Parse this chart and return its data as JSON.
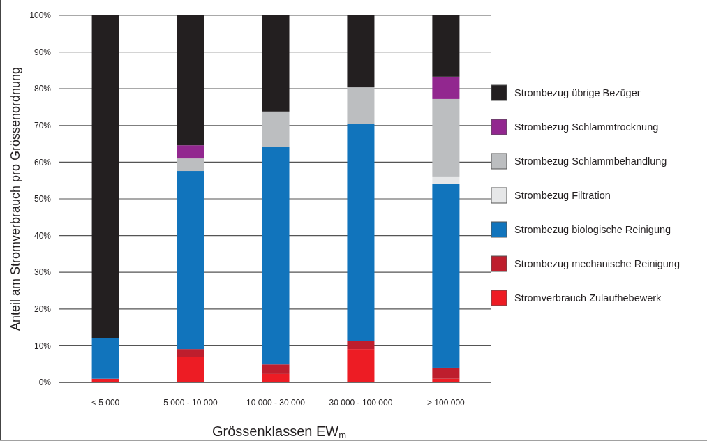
{
  "chart_data": {
    "type": "bar",
    "stacked": true,
    "xlabel": "Grössenklassen EW$_{m}$",
    "ylabel": "Anteil am Stromverbrauch pro Grössenordnung",
    "categories": [
      "< 5 000",
      "5 000 - 10 000",
      "10 000 - 30 000",
      "30 000 - 100 000",
      "> 100 000"
    ],
    "ylim": [
      0,
      100
    ],
    "yticks": [
      {
        "value": 0,
        "label": "0%"
      },
      {
        "value": 10,
        "label": "10%"
      },
      {
        "value": 20,
        "label": "20%"
      },
      {
        "value": 30,
        "label": "30%"
      },
      {
        "value": 40,
        "label": "40%"
      },
      {
        "value": 50,
        "label": "50%"
      },
      {
        "value": 60,
        "label": "60%"
      },
      {
        "value": 70,
        "label": "70%"
      },
      {
        "value": 80,
        "label": "80%"
      },
      {
        "value": 90,
        "label": "90%"
      },
      {
        "value": 100,
        "label": "100%"
      }
    ],
    "grid": "y",
    "legend": "right",
    "series": [
      {
        "name": "Stromverbrauch Zulaufhebewerk",
        "color": "#ed1c24",
        "values": [
          1,
          7,
          2.3,
          9.1,
          1
        ]
      },
      {
        "name": "Strombezug mechanische Reinigung",
        "color": "#be1e2d",
        "values": [
          0,
          2.1,
          2.6,
          2.3,
          3
        ]
      },
      {
        "name": "Strombezug biologische Reinigung",
        "color": "#1174bc",
        "values": [
          11,
          48.5,
          59.2,
          59.1,
          50
        ]
      },
      {
        "name": "Strombezug Filtration",
        "color": "#e6e7e8",
        "values": [
          0,
          0,
          0,
          0,
          2.1
        ]
      },
      {
        "name": "Strombezug Schlammbehandlung",
        "color": "#bcbec0",
        "values": [
          0,
          3.4,
          9.7,
          9.9,
          21.1
        ]
      },
      {
        "name": "Strombezug Schlammtrocknung",
        "color": "#92278f",
        "values": [
          0,
          3.6,
          0,
          0,
          6.1
        ]
      },
      {
        "name": "Strombezug übrige Bezüger",
        "color": "#231f20",
        "values": [
          88,
          35.4,
          26.2,
          19.6,
          16.7
        ]
      }
    ]
  }
}
